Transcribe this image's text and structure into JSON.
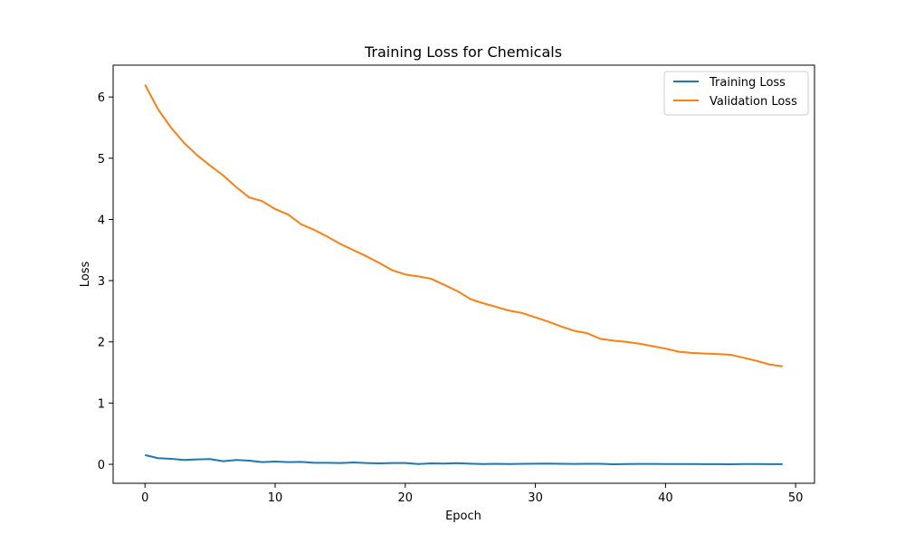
{
  "chart_data": {
    "type": "line",
    "title": "Training Loss for Chemicals",
    "xlabel": "Epoch",
    "ylabel": "Loss",
    "xlim": [
      -2.45,
      51.45
    ],
    "ylim": [
      -0.31,
      6.52
    ],
    "xticks": [
      0,
      10,
      20,
      30,
      40,
      50
    ],
    "yticks": [
      0,
      1,
      2,
      3,
      4,
      5,
      6
    ],
    "grid": false,
    "legend_position": "top-right",
    "x": [
      0,
      1,
      2,
      3,
      4,
      5,
      6,
      7,
      8,
      9,
      10,
      11,
      12,
      13,
      14,
      15,
      16,
      17,
      18,
      19,
      20,
      21,
      22,
      23,
      24,
      25,
      26,
      27,
      28,
      29,
      30,
      31,
      32,
      33,
      34,
      35,
      36,
      37,
      38,
      39,
      40,
      41,
      42,
      43,
      44,
      45,
      46,
      47,
      48,
      49
    ],
    "series": [
      {
        "name": "Training Loss",
        "color": "#1f77b4",
        "values": [
          0.15,
          0.1,
          0.09,
          0.07,
          0.08,
          0.085,
          0.05,
          0.07,
          0.06,
          0.035,
          0.045,
          0.035,
          0.04,
          0.025,
          0.025,
          0.02,
          0.03,
          0.02,
          0.015,
          0.02,
          0.02,
          0.005,
          0.015,
          0.012,
          0.018,
          0.01,
          0.005,
          0.008,
          0.005,
          0.008,
          0.01,
          0.012,
          0.008,
          0.006,
          0.007,
          0.008,
          0.0,
          0.004,
          0.006,
          0.006,
          0.005,
          0.004,
          0.004,
          0.002,
          0.002,
          0.001,
          0.004,
          0.004,
          0.002,
          0.002
        ]
      },
      {
        "name": "Validation Loss",
        "color": "#ff7f0e",
        "values": [
          6.2,
          5.8,
          5.5,
          5.25,
          5.05,
          4.88,
          4.72,
          4.53,
          4.36,
          4.3,
          4.17,
          4.08,
          3.92,
          3.83,
          3.72,
          3.6,
          3.5,
          3.4,
          3.29,
          3.17,
          3.1,
          3.07,
          3.03,
          2.93,
          2.83,
          2.7,
          2.63,
          2.57,
          2.51,
          2.47,
          2.4,
          2.33,
          2.25,
          2.18,
          2.14,
          2.05,
          2.02,
          2.0,
          1.97,
          1.93,
          1.89,
          1.84,
          1.82,
          1.81,
          1.8,
          1.79,
          1.74,
          1.69,
          1.63,
          1.6
        ]
      }
    ]
  }
}
